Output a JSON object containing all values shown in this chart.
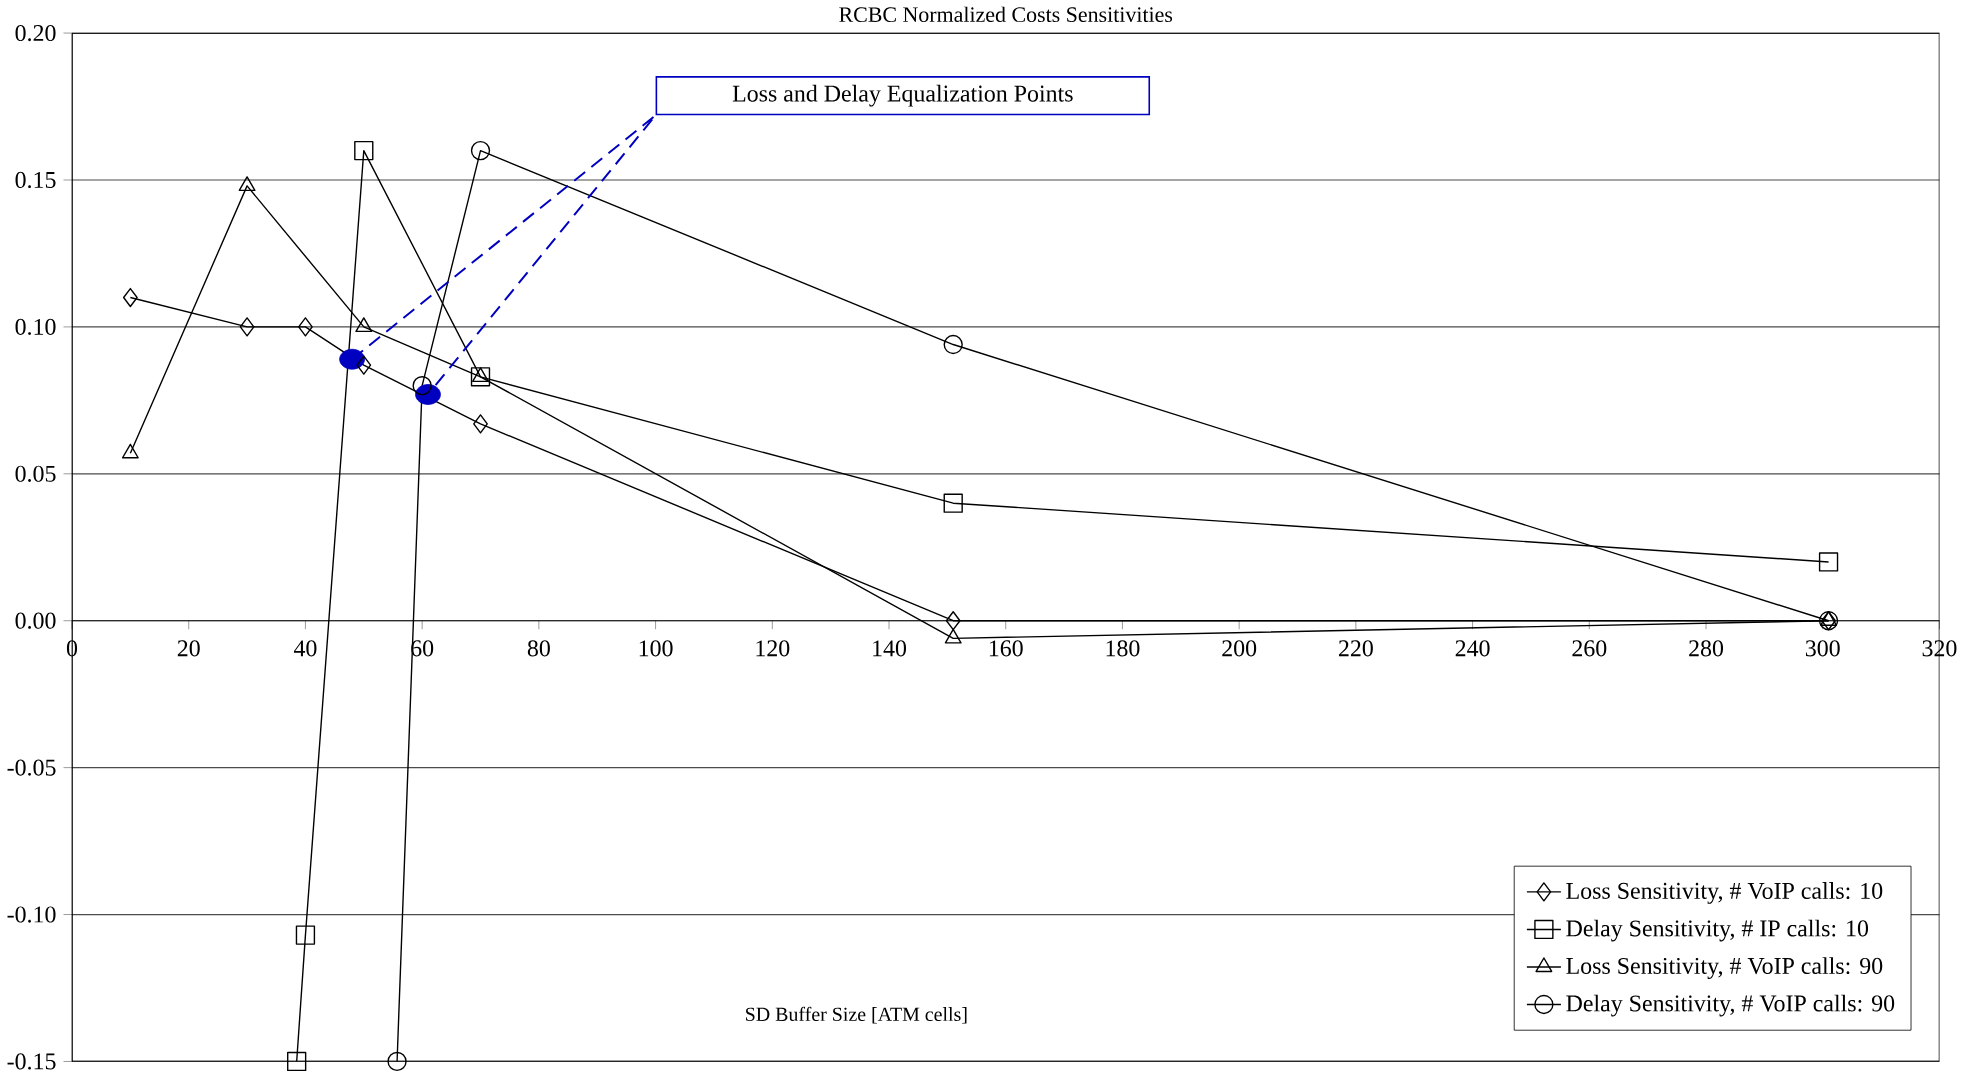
{
  "chart_data": {
    "type": "line",
    "title": "RCBC Normalized Costs Sensitivities",
    "xlabel": "SD Buffer Size [ATM cells]",
    "xlim": [
      0,
      320
    ],
    "xticks": [
      0,
      20,
      40,
      60,
      80,
      100,
      120,
      140,
      160,
      180,
      200,
      220,
      240,
      260,
      280,
      300,
      320
    ],
    "ylim": [
      -0.15,
      0.2
    ],
    "yticks": [
      {
        "value": -0.15,
        "label": "-0.15"
      },
      {
        "value": -0.1,
        "label": "-0.10"
      },
      {
        "value": -0.05,
        "label": "-0.05"
      },
      {
        "value": 0,
        "label": "0.00"
      },
      {
        "value": 0.05,
        "label": "0.05"
      },
      {
        "value": 0.1,
        "label": "0.10"
      },
      {
        "value": 0.15,
        "label": "0.15"
      },
      {
        "value": 0.2,
        "label": "0.20"
      }
    ],
    "grid": "y",
    "legend": "bottom right",
    "line_style": "solid",
    "series": [
      {
        "name": "Loss Sensitivity,  # VoIP calls: 10",
        "color": "#000000",
        "marker": "diamond",
        "x": [
          10,
          30,
          40,
          50,
          70,
          151,
          301
        ],
        "values": [
          0.11,
          0.1,
          0.1,
          0.087,
          0.067,
          0,
          0
        ]
      },
      {
        "name": "Delay Sensitivity, # IP calls: 10",
        "color": "#000000",
        "marker": "square",
        "x": [
          38.5,
          40,
          50,
          70,
          151,
          301
        ],
        "values": [
          -0.15,
          -0.107,
          0.16,
          0.083,
          0.04,
          0.02
        ]
      },
      {
        "name": "Loss Sensitivity, # VoIP calls: 90",
        "color": "#000000",
        "marker": "triangle",
        "x": [
          10,
          30,
          50,
          70,
          151,
          301
        ],
        "values": [
          0.057,
          0.148,
          0.1,
          0.083,
          -0.006,
          0
        ]
      },
      {
        "name": "Delay Sensitivity, # VoIP calls: 90",
        "color": "#000000",
        "marker": "circle",
        "x": [
          55.7,
          60,
          70,
          151,
          301
        ],
        "values": [
          -0.15,
          0.08,
          0.16,
          0.094,
          0
        ]
      },
      {
        "type": "scatter",
        "color": "#0000c0",
        "marker": "circle",
        "x": [
          48,
          61
        ],
        "values": [
          0.089,
          0.077
        ]
      },
      {
        "type": "line",
        "color": "#0000c0",
        "marker": "none",
        "line_style": "dashed",
        "x": [
          48,
          100,
          61
        ],
        "values": [
          0.089,
          0.172,
          0.077
        ]
      }
    ],
    "annotations": [
      "Loss and Delay Equalization Points"
    ]
  }
}
